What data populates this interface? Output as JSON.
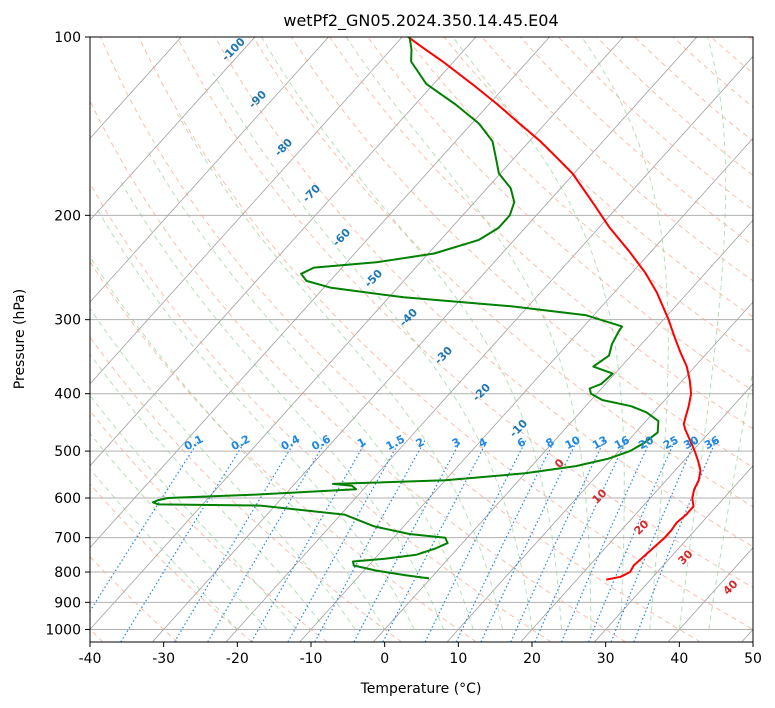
{
  "chart_data": {
    "type": "line",
    "title": "wetPf2_GN05.2024.350.14.45.E04",
    "xlabel": "Temperature (°C)",
    "ylabel": "Pressure (hPa)",
    "xlim": [
      -40,
      50
    ],
    "ylim": [
      1050,
      100
    ],
    "y_scale": "log",
    "skew": true,
    "grid": true,
    "x_ticks": [
      -40,
      -30,
      -20,
      -10,
      0,
      10,
      20,
      30,
      40,
      50
    ],
    "y_ticks": [
      100,
      200,
      300,
      400,
      500,
      600,
      700,
      800,
      900,
      1000
    ],
    "isotherms": [
      -100,
      -90,
      -80,
      -70,
      -60,
      -50,
      -40,
      -30,
      -20,
      -10,
      0,
      10,
      20,
      30,
      40,
      50
    ],
    "dry_adiabat_labels": [
      "-100",
      "-90",
      "-80",
      "-70",
      "-60",
      "-50",
      "-40",
      "-30",
      "-20",
      "-10"
    ],
    "moist_adiabat_labels": [
      "0",
      "10",
      "20",
      "30",
      "40"
    ],
    "mixing_ratio_labels": [
      "0.1",
      "0.2",
      "0.4",
      "0.6",
      "1",
      "1.5",
      "2",
      "3",
      "4",
      "6",
      "8",
      "10",
      "13",
      "16",
      "20",
      "25",
      "30",
      "36"
    ],
    "series": [
      {
        "name": "",
        "color": "#ff0000",
        "points": [
          [
            824,
            24.0
          ],
          [
            815,
            25.6
          ],
          [
            800,
            26.3
          ],
          [
            780,
            26.0
          ],
          [
            750,
            26.3
          ],
          [
            720,
            26.6
          ],
          [
            700,
            26.8
          ],
          [
            680,
            26.8
          ],
          [
            660,
            26.6
          ],
          [
            640,
            26.9
          ],
          [
            620,
            26.9
          ],
          [
            600,
            25.7
          ],
          [
            580,
            24.9
          ],
          [
            560,
            24.4
          ],
          [
            540,
            23.5
          ],
          [
            520,
            22.0
          ],
          [
            500,
            20.3
          ],
          [
            480,
            18.4
          ],
          [
            460,
            16.4
          ],
          [
            450,
            15.5
          ],
          [
            440,
            15.0
          ],
          [
            420,
            14.0
          ],
          [
            400,
            12.8
          ],
          [
            380,
            11.0
          ],
          [
            360,
            8.9
          ],
          [
            340,
            6.2
          ],
          [
            320,
            3.5
          ],
          [
            300,
            0.7
          ],
          [
            270,
            -4.2
          ],
          [
            250,
            -8.2
          ],
          [
            230,
            -13.0
          ],
          [
            210,
            -18.5
          ],
          [
            190,
            -24.0
          ],
          [
            170,
            -30.2
          ],
          [
            160,
            -34.2
          ],
          [
            150,
            -38.5
          ],
          [
            140,
            -43.5
          ],
          [
            130,
            -48.8
          ],
          [
            120,
            -54.8
          ],
          [
            110,
            -61.5
          ],
          [
            105,
            -65.3
          ],
          [
            100,
            -69.2
          ]
        ]
      },
      {
        "name": "",
        "color": "#008000",
        "points": [
          [
            820,
            -0.2
          ],
          [
            810,
            -3.8
          ],
          [
            795,
            -8.5
          ],
          [
            780,
            -12.0
          ],
          [
            768,
            -12.6
          ],
          [
            760,
            -8.6
          ],
          [
            748,
            -4.8
          ],
          [
            730,
            -3.0
          ],
          [
            715,
            -2.0
          ],
          [
            700,
            -3.0
          ],
          [
            690,
            -8.3
          ],
          [
            670,
            -14.0
          ],
          [
            640,
            -19.5
          ],
          [
            618,
            -32.0
          ],
          [
            615,
            -46.0
          ],
          [
            610,
            -47.0
          ],
          [
            605,
            -46.5
          ],
          [
            600,
            -45.5
          ],
          [
            592,
            -34.0
          ],
          [
            580,
            -21.0
          ],
          [
            572,
            -22.0
          ],
          [
            568,
            -24.8
          ],
          [
            560,
            -10.0
          ],
          [
            545,
            0.0
          ],
          [
            530,
            6.0
          ],
          [
            515,
            9.5
          ],
          [
            500,
            11.5
          ],
          [
            485,
            12.4
          ],
          [
            465,
            13.0
          ],
          [
            445,
            11.7
          ],
          [
            430,
            9.0
          ],
          [
            420,
            6.2
          ],
          [
            410,
            1.5
          ],
          [
            400,
            -0.8
          ],
          [
            392,
            -1.6
          ],
          [
            385,
            -0.6
          ],
          [
            370,
            -0.3
          ],
          [
            360,
            -3.8
          ],
          [
            345,
            -3.0
          ],
          [
            330,
            -4.0
          ],
          [
            315,
            -4.6
          ],
          [
            308,
            -4.8
          ],
          [
            295,
            -11.0
          ],
          [
            285,
            -22.0
          ],
          [
            275,
            -38.0
          ],
          [
            265,
            -49.0
          ],
          [
            258,
            -53.2
          ],
          [
            251,
            -54.8
          ],
          [
            245,
            -53.8
          ],
          [
            240,
            -46.0
          ],
          [
            232,
            -39.2
          ],
          [
            220,
            -34.8
          ],
          [
            210,
            -33.6
          ],
          [
            200,
            -33.6
          ],
          [
            190,
            -34.6
          ],
          [
            180,
            -36.8
          ],
          [
            170,
            -40.2
          ],
          [
            160,
            -42.5
          ],
          [
            150,
            -45.0
          ],
          [
            140,
            -49.0
          ],
          [
            130,
            -54.5
          ],
          [
            120,
            -61.0
          ],
          [
            110,
            -65.8
          ],
          [
            105,
            -67.2
          ],
          [
            100,
            -69.0
          ]
        ]
      }
    ]
  }
}
